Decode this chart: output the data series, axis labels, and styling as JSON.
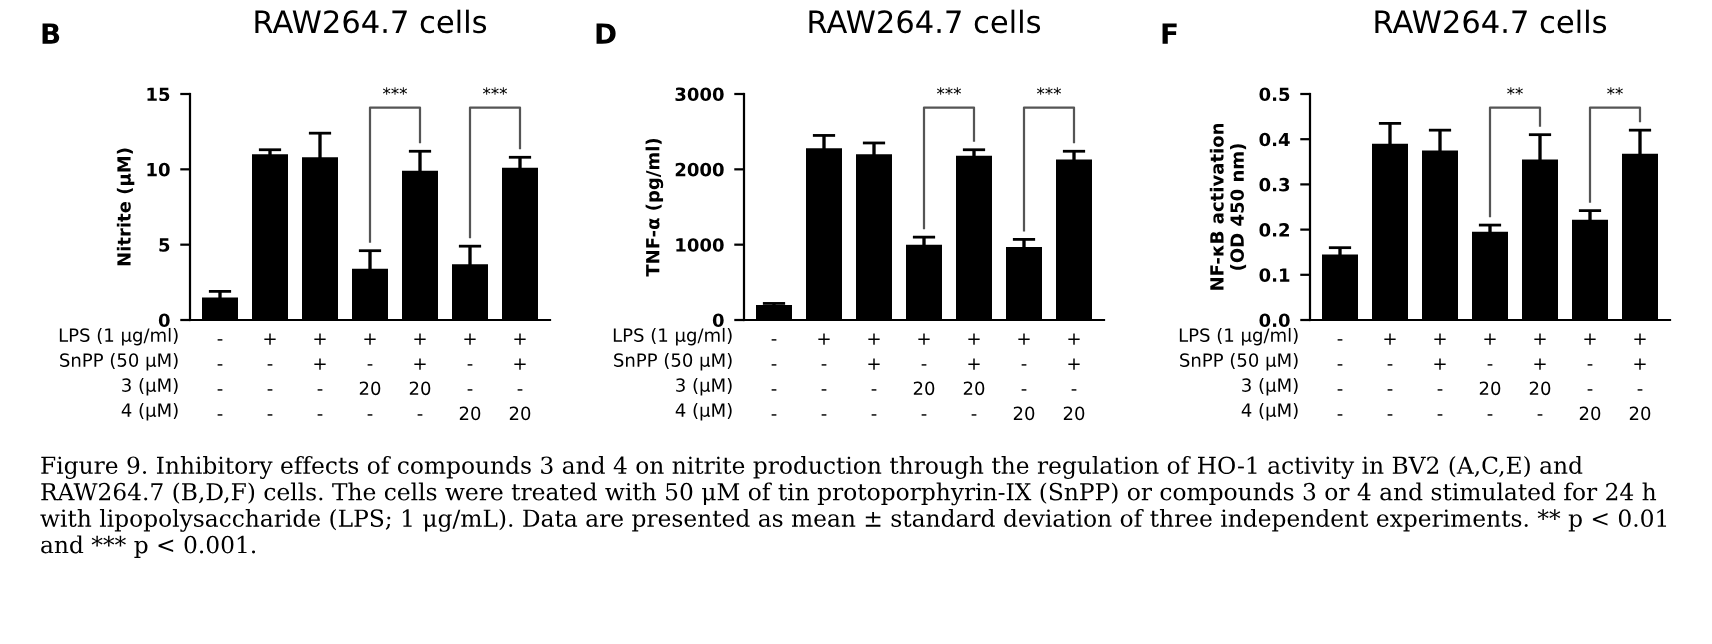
{
  "chart_data": [
    {
      "type": "bar",
      "title": "RAW264.7 cells",
      "ylabel": "Nitrite (μM)",
      "categories": [
        "-\n-\n-\n-",
        "+\n-\n-\n-",
        "+\n+\n-\n-",
        "+\n-\n20\n-",
        "+\n+\n20\n-",
        "+\n-\n-\n20",
        "+\n+\n-\n20"
      ],
      "values": [
        1.5,
        11.0,
        10.8,
        3.4,
        9.9,
        3.7,
        10.1
      ],
      "errors": [
        0.4,
        0.3,
        1.6,
        1.2,
        1.3,
        1.2,
        0.7
      ],
      "color": "#000000",
      "ylim": [
        0,
        15
      ],
      "yticks": [
        0,
        5,
        10,
        15
      ],
      "grid": false,
      "legend": false,
      "annotations": [
        "B",
        "LPS (1 μg/ml)\nSnPP (50 μM)\n3 (μM)\n4 (μM)",
        "***",
        "***",
        "Figure 9. Inhibitory effects of compounds 3 and 4 on nitrite production through the regulation of HO-1 activity in BV2 (A,C,E) and RAW264.7 (B,D,F) cells. The cells were treated with 50 μM of tin protoporphyrin-IX (SnPP) or compounds 3 or 4 and stimulated for 24 h with lipopolysaccharide (LPS; 1 μg/mL). Data are presented as mean ± standard deviation of three independent experiments. ** p < 0.01 and *** p < 0.001."
      ]
    },
    {
      "type": "bar",
      "title": "RAW264.7 cells",
      "ylabel": "TNF-α (pg/ml)",
      "categories": [
        "-\n-\n-\n-",
        "+\n-\n-\n-",
        "+\n+\n-\n-",
        "+\n-\n20\n-",
        "+\n+\n20\n-",
        "+\n-\n-\n20",
        "+\n+\n-\n20"
      ],
      "values": [
        200,
        2280,
        2200,
        1000,
        2180,
        970,
        2130
      ],
      "errors": [
        20,
        170,
        150,
        100,
        80,
        100,
        110
      ],
      "color": "#000000",
      "ylim": [
        0,
        3000
      ],
      "yticks": [
        0,
        1000,
        2000,
        3000
      ],
      "grid": false,
      "legend": false,
      "annotations": [
        "D",
        "LPS (1 μg/ml)\nSnPP (50 μM)\n3 (μM)\n4 (μM)",
        "***",
        "***"
      ]
    },
    {
      "type": "bar",
      "title": "RAW264.7 cells",
      "ylabel": "NF-κB activation\n(OD 450 nm)",
      "categories": [
        "-\n-\n-\n-",
        "+\n-\n-\n-",
        "+\n+\n-\n-",
        "+\n-\n20\n-",
        "+\n+\n20\n-",
        "+\n-\n-\n20",
        "+\n+\n-\n20"
      ],
      "values": [
        0.145,
        0.39,
        0.375,
        0.195,
        0.355,
        0.222,
        0.368
      ],
      "errors": [
        0.015,
        0.045,
        0.045,
        0.015,
        0.055,
        0.02,
        0.052
      ],
      "color": "#000000",
      "ylim": [
        0,
        0.5
      ],
      "yticks": [
        {
          "value": 0,
          "label": "0.0"
        },
        0.1,
        0.2,
        0.3,
        0.4,
        0.5
      ],
      "grid": false,
      "legend": false,
      "annotations": [
        "F",
        "LPS (1 μg/ml)\nSnPP (50 μM)\n3 (μM)\n4 (μM)",
        "**",
        "**"
      ]
    }
  ]
}
